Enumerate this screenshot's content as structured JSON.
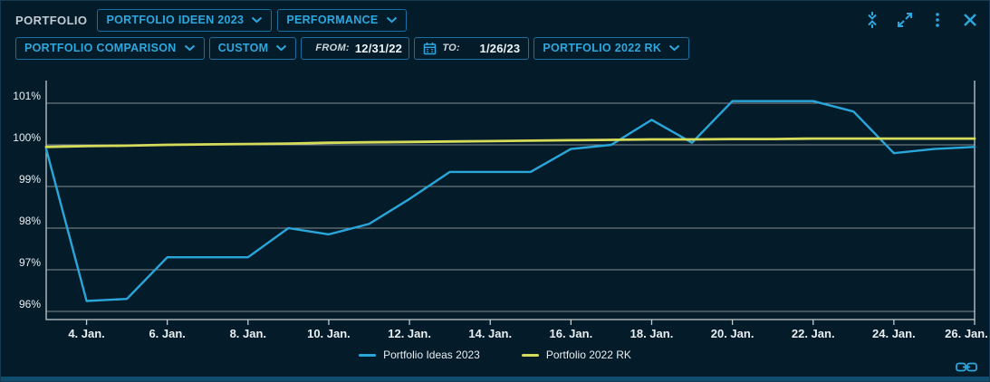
{
  "header": {
    "label": "PORTFOLIO",
    "dropdowns": [
      {
        "label": "PORTFOLIO IDEEN 2023"
      },
      {
        "label": "PERFORMANCE"
      }
    ],
    "window_icons": [
      "collapse-vertical-icon",
      "expand-icon",
      "kebab-menu-icon",
      "close-icon"
    ]
  },
  "toolbar": {
    "comparison_dropdown": "PORTFOLIO COMPARISON",
    "range_dropdown": "CUSTOM",
    "from": {
      "label": "FROM:",
      "value": "12/31/22"
    },
    "to": {
      "label": "TO:",
      "value": "1/26/23"
    },
    "benchmark_dropdown": "PORTFOLIO 2022 RK"
  },
  "chart_data": {
    "type": "line",
    "x_unit": "day of January 2023",
    "x_days": [
      3,
      4,
      5,
      6,
      7,
      8,
      9,
      10,
      11,
      12,
      13,
      14,
      15,
      16,
      17,
      18,
      19,
      20,
      21,
      22,
      23,
      24,
      25,
      26
    ],
    "x_ticks": [
      {
        "day": 4,
        "label": "4. Jan."
      },
      {
        "day": 6,
        "label": "6. Jan."
      },
      {
        "day": 8,
        "label": "8. Jan."
      },
      {
        "day": 10,
        "label": "10. Jan."
      },
      {
        "day": 12,
        "label": "12. Jan."
      },
      {
        "day": 14,
        "label": "14. Jan."
      },
      {
        "day": 16,
        "label": "16. Jan."
      },
      {
        "day": 18,
        "label": "18. Jan."
      },
      {
        "day": 20,
        "label": "20. Jan."
      },
      {
        "day": 22,
        "label": "22. Jan."
      },
      {
        "day": 24,
        "label": "24. Jan."
      },
      {
        "day": 26,
        "label": "26. Jan."
      }
    ],
    "y_axis": {
      "min": 96,
      "max": 101,
      "step": 1,
      "suffix": "%"
    },
    "y_tick_labels": [
      "96%",
      "97%",
      "98%",
      "99%",
      "100%",
      "101%"
    ],
    "ylim": [
      95.6,
      101.6
    ],
    "grid": true,
    "legend_position": "bottom",
    "series": [
      {
        "name": "Portfolio Ideas 2023",
        "color": "#29a6da",
        "width": 2.4,
        "values": [
          99.9,
          96.25,
          96.3,
          97.3,
          97.3,
          97.3,
          98.0,
          97.85,
          98.1,
          98.7,
          99.35,
          99.35,
          99.35,
          99.9,
          100.0,
          100.6,
          100.05,
          101.05,
          101.05,
          101.05,
          100.8,
          99.8,
          99.9,
          99.95
        ]
      },
      {
        "name": "Portfolio 2022 RK",
        "color": "#d6dc5a",
        "width": 2.8,
        "values": [
          99.95,
          99.97,
          99.98,
          100.0,
          100.01,
          100.02,
          100.03,
          100.05,
          100.06,
          100.07,
          100.08,
          100.09,
          100.1,
          100.11,
          100.12,
          100.13,
          100.13,
          100.14,
          100.14,
          100.15,
          100.15,
          100.15,
          100.15,
          100.15
        ]
      }
    ]
  },
  "colors": {
    "background": "#041c29",
    "accent": "#2da7de",
    "button_border": "#1b6fa0",
    "grid": "#828b91",
    "axis": "#c3cbd1",
    "text": "#e9eef2",
    "muted": "#c3cbd2",
    "bottom_bar": "#0f4e6e",
    "series_blue": "#29a6da",
    "series_yellow": "#d6dc5a"
  }
}
